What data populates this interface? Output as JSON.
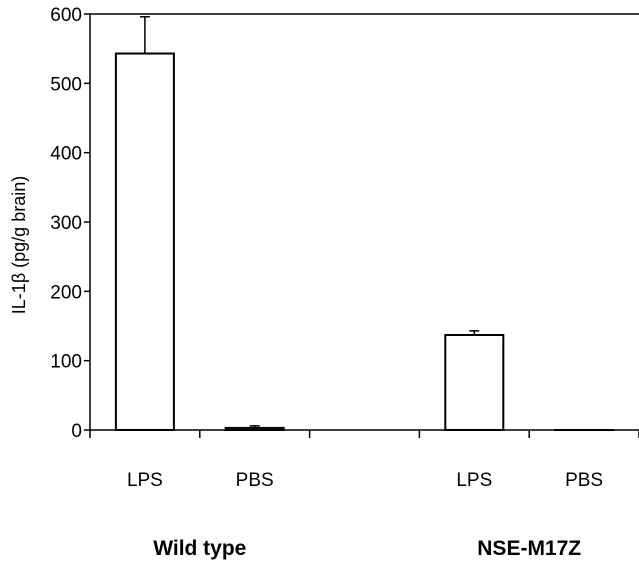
{
  "chart_data": {
    "type": "bar",
    "ylabel": "IL-1β (pg/g brain)",
    "ylim": [
      0,
      600
    ],
    "yticks": [
      0,
      100,
      200,
      300,
      400,
      500,
      600
    ],
    "ytick_labels": [
      "0",
      "100",
      "200",
      "300",
      "400",
      "500",
      "600"
    ],
    "categories": [
      "LPS",
      "PBS",
      "",
      "LPS",
      "PBS"
    ],
    "values": [
      543,
      3,
      0,
      137,
      0
    ],
    "error": [
      53,
      3,
      0,
      6,
      0
    ],
    "groups": [
      {
        "label": "Wild type",
        "categories": [
          0,
          1
        ]
      },
      {
        "label": "NSE-M17Z",
        "categories": [
          3,
          4
        ]
      }
    ],
    "grid": false,
    "bar_fill": "#ffffff",
    "bar_stroke": "#000000"
  }
}
